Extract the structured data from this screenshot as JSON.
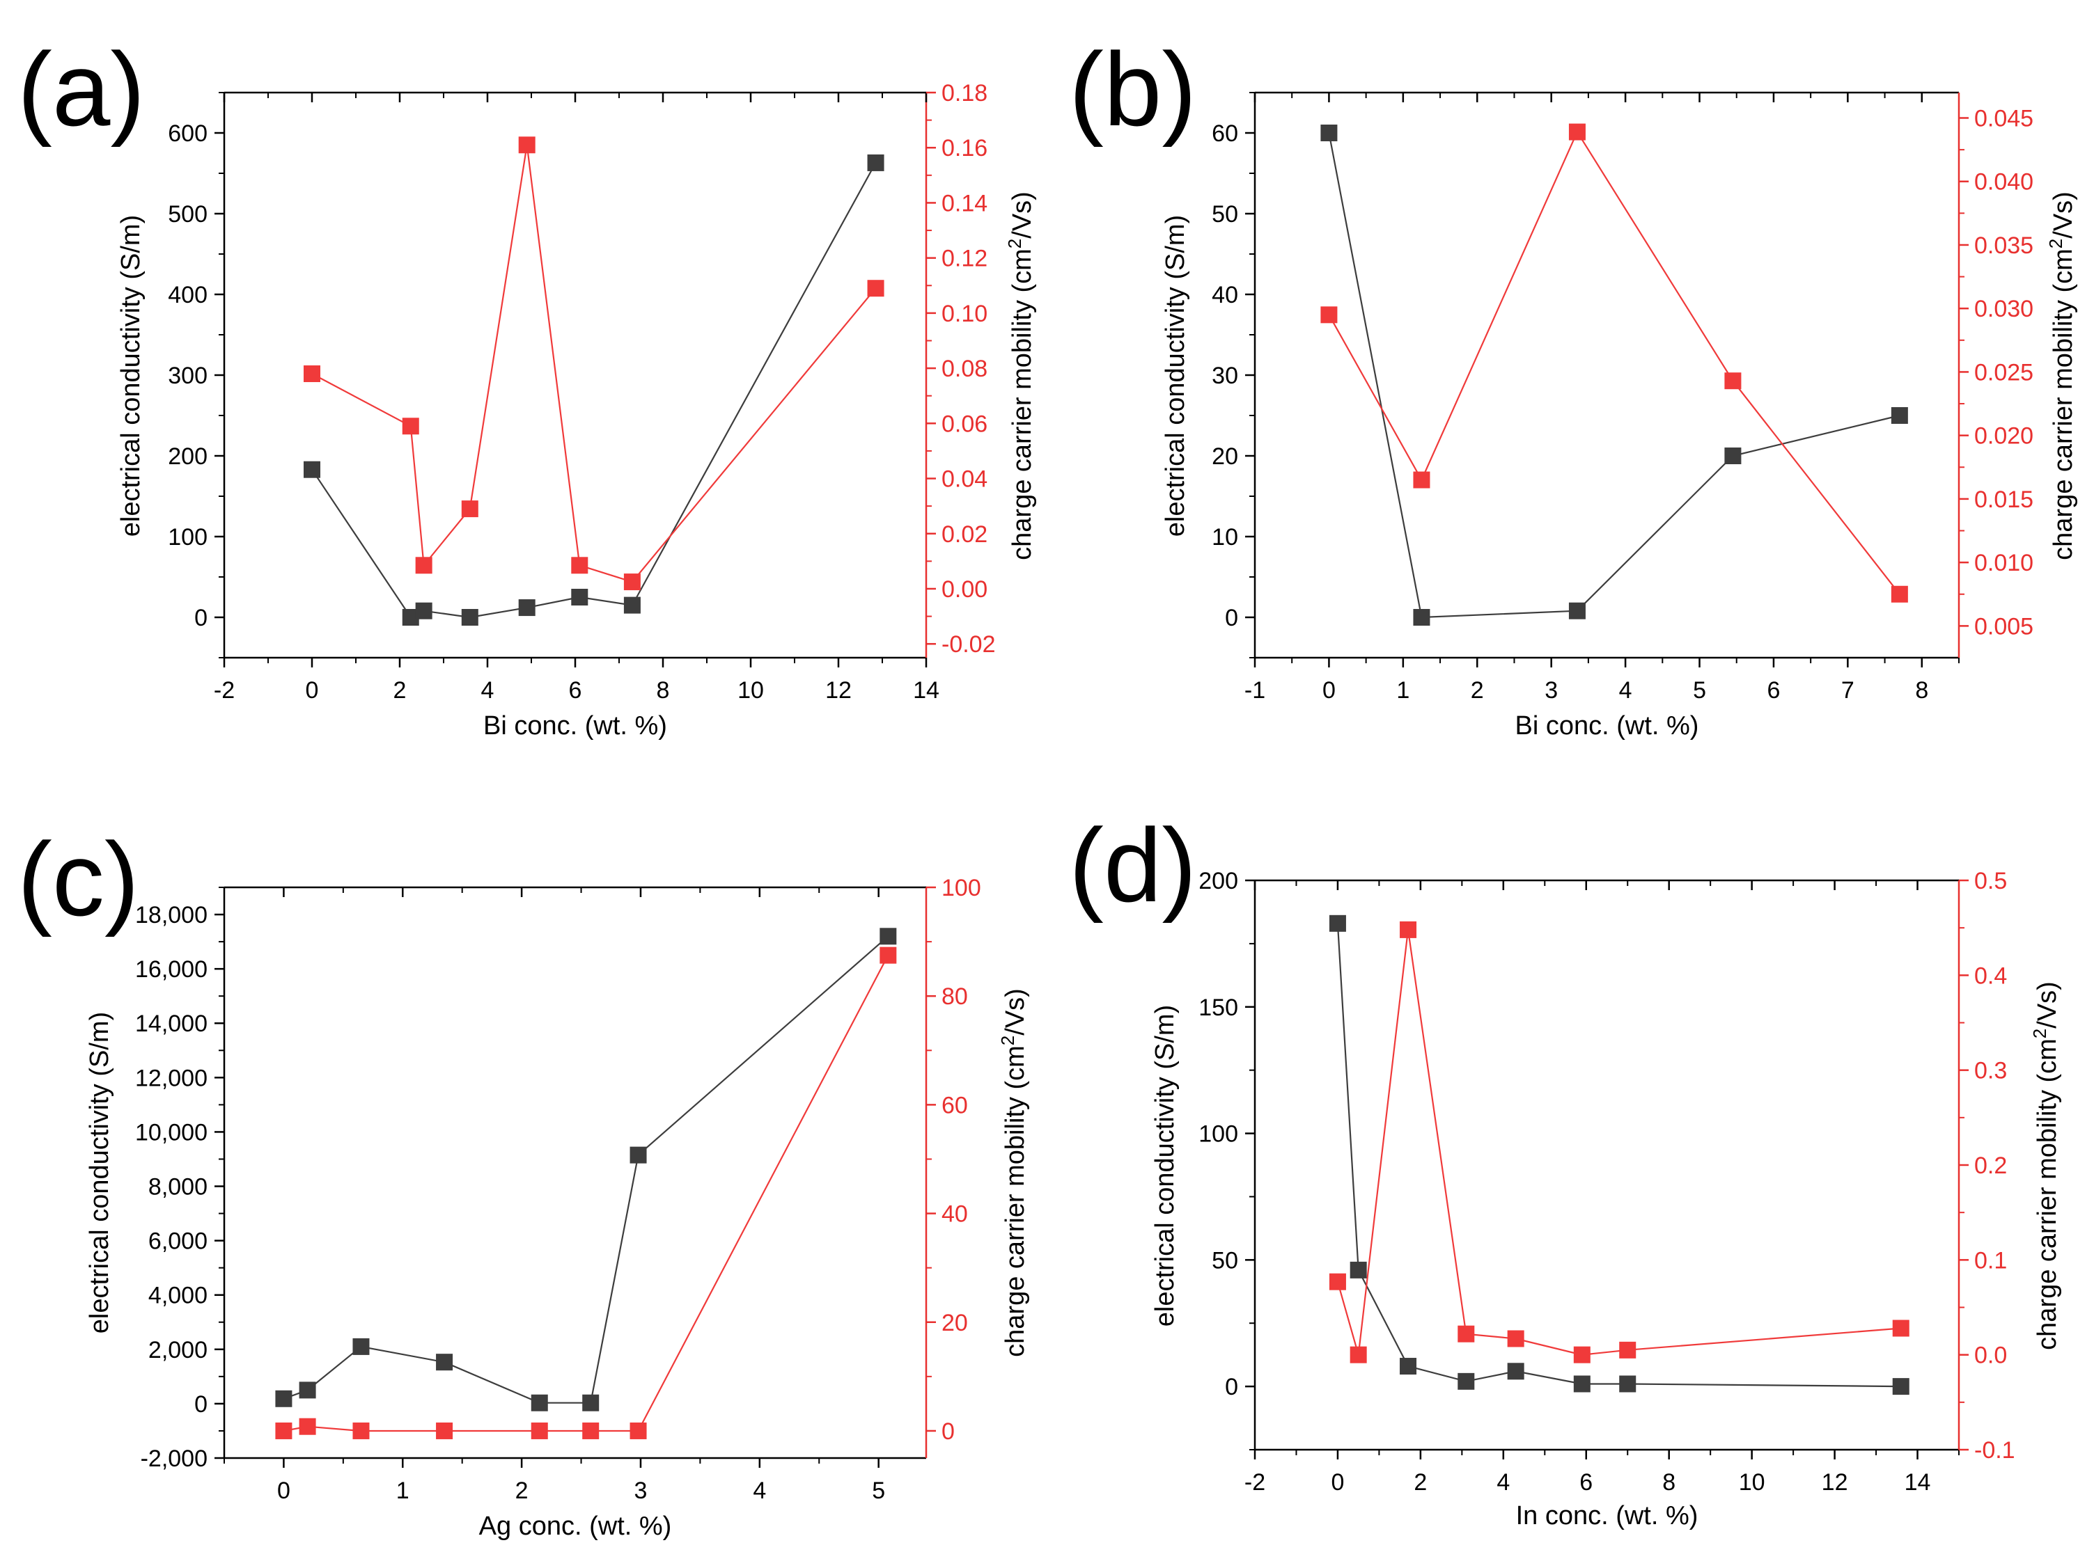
{
  "colors": {
    "black_series": "#3d3d3d",
    "red_series": "#f03a3a",
    "red_axis": "#e8302f",
    "axis": "#000000"
  },
  "chart_data": [
    {
      "panel": "(a)",
      "type": "line",
      "xlabel": "Bi conc. (wt. %)",
      "ylabel_left": "electrical conductivity (S/m)",
      "ylabel_right_prefix": "charge carrier mobility (cm",
      "ylabel_right_sup": "2",
      "ylabel_right_suffix": "/Vs)",
      "xlim": [
        -2,
        14
      ],
      "ylim_left": [
        -50,
        650
      ],
      "ylim_right": [
        -0.025,
        0.18
      ],
      "xticks": [
        -2,
        0,
        2,
        4,
        6,
        8,
        10,
        12,
        14
      ],
      "xtick_labels": [
        "-2",
        "0",
        "2",
        "4",
        "6",
        "8",
        "10",
        "12",
        "14"
      ],
      "yticks_left": [
        0,
        100,
        200,
        300,
        400,
        500,
        600
      ],
      "ytick_labels_left": [
        "0",
        "100",
        "200",
        "300",
        "400",
        "500",
        "600"
      ],
      "yticks_right": [
        -0.02,
        0,
        0.02,
        0.04,
        0.06,
        0.08,
        0.1,
        0.12,
        0.14,
        0.16,
        0.18
      ],
      "ytick_labels_right": [
        "-0.02",
        "0.00",
        "0.02",
        "0.04",
        "0.06",
        "0.08",
        "0.10",
        "0.12",
        "0.14",
        "0.16",
        "0.18"
      ],
      "series": [
        {
          "name": "electrical conductivity",
          "axis": "left",
          "color": "#3d3d3d",
          "x": [
            0,
            2.25,
            2.55,
            3.6,
            4.9,
            6.1,
            7.3,
            12.85
          ],
          "y": [
            183,
            0,
            8,
            0,
            12,
            25,
            15,
            563
          ]
        },
        {
          "name": "charge carrier mobility",
          "axis": "right",
          "color": "#f03a3a",
          "x": [
            0,
            2.25,
            2.55,
            3.6,
            4.9,
            6.1,
            7.3,
            12.85
          ],
          "y": [
            0.078,
            0.059,
            0.0085,
            0.029,
            0.161,
            0.0085,
            0.0025,
            0.109
          ]
        }
      ]
    },
    {
      "panel": "(b)",
      "type": "line",
      "xlabel": "Bi conc. (wt. %)",
      "ylabel_left": "electrical conductivity (S/m)",
      "ylabel_right_prefix": "charge carrier mobility (cm",
      "ylabel_right_sup": "2",
      "ylabel_right_suffix": "/Vs)",
      "xlim": [
        -1,
        8.5
      ],
      "ylim_left": [
        -5,
        65
      ],
      "ylim_right": [
        0.0025,
        0.047
      ],
      "xticks": [
        -1,
        0,
        1,
        2,
        3,
        4,
        5,
        6,
        7,
        8
      ],
      "xtick_labels": [
        "-1",
        "0",
        "1",
        "2",
        "3",
        "4",
        "5",
        "6",
        "7",
        "8"
      ],
      "yticks_left": [
        0,
        10,
        20,
        30,
        40,
        50,
        60
      ],
      "ytick_labels_left": [
        "0",
        "10",
        "20",
        "30",
        "40",
        "50",
        "60"
      ],
      "yticks_right": [
        0.005,
        0.01,
        0.015,
        0.02,
        0.025,
        0.03,
        0.035,
        0.04,
        0.045
      ],
      "ytick_labels_right": [
        "0.005",
        "0.010",
        "0.015",
        "0.020",
        "0.025",
        "0.030",
        "0.035",
        "0.040",
        "0.045"
      ],
      "series": [
        {
          "name": "electrical conductivity",
          "axis": "left",
          "color": "#3d3d3d",
          "x": [
            0,
            1.25,
            3.35,
            5.45,
            7.7
          ],
          "y": [
            60,
            0,
            0.8,
            20,
            25
          ]
        },
        {
          "name": "charge carrier mobility",
          "axis": "right",
          "color": "#f03a3a",
          "x": [
            0,
            1.25,
            3.35,
            5.45,
            7.7
          ],
          "y": [
            0.0295,
            0.0165,
            0.0439,
            0.0243,
            0.0075
          ]
        }
      ]
    },
    {
      "panel": "(c)",
      "type": "line",
      "xlabel": "Ag conc. (wt. %)",
      "ylabel_left": "electrical conductivity (S/m)",
      "ylabel_right_prefix": "charge carrier mobility (cm",
      "ylabel_right_sup": "2",
      "ylabel_right_suffix": "/Vs)",
      "xlim": [
        -0.5,
        5.4
      ],
      "ylim_left": [
        -2000,
        19000
      ],
      "ylim_right": [
        -5,
        100
      ],
      "xticks": [
        0,
        1,
        2,
        3,
        4,
        5
      ],
      "xtick_labels": [
        "0",
        "1",
        "2",
        "3",
        "4",
        "5"
      ],
      "yticks_left": [
        -2000,
        0,
        2000,
        4000,
        6000,
        8000,
        10000,
        12000,
        14000,
        16000,
        18000
      ],
      "ytick_labels_left": [
        "-2,000",
        "0",
        "2,000",
        "4,000",
        "6,000",
        "8,000",
        "10,000",
        "12,000",
        "14,000",
        "16,000",
        "18,000"
      ],
      "yticks_right": [
        0,
        20,
        40,
        60,
        80,
        100
      ],
      "ytick_labels_right": [
        "0",
        "20",
        "40",
        "60",
        "80",
        "100"
      ],
      "series": [
        {
          "name": "electrical conductivity",
          "axis": "left",
          "color": "#3d3d3d",
          "x": [
            0,
            0.2,
            0.65,
            1.35,
            2.15,
            2.58,
            2.98,
            5.08
          ],
          "y": [
            183,
            500,
            2100,
            1530,
            30,
            30,
            9150,
            17200
          ]
        },
        {
          "name": "charge carrier mobility",
          "axis": "right",
          "color": "#f03a3a",
          "x": [
            0,
            0.2,
            0.65,
            1.35,
            2.15,
            2.58,
            2.98,
            5.08
          ],
          "y": [
            0,
            0.8,
            0,
            0,
            0,
            0,
            0,
            87.5
          ]
        }
      ]
    },
    {
      "panel": "(d)",
      "type": "line",
      "xlabel": "In conc. (wt. %)",
      "ylabel_left": "electrical conductivity (S/m)",
      "ylabel_right_prefix": "charge carrier mobility (cm",
      "ylabel_right_sup": "2",
      "ylabel_right_suffix": "/Vs)",
      "xlim": [
        -2,
        15
      ],
      "ylim_left": [
        -25,
        200
      ],
      "ylim_right": [
        -0.1,
        0.5
      ],
      "xticks": [
        -2,
        0,
        2,
        4,
        6,
        8,
        10,
        12,
        14
      ],
      "xtick_labels": [
        "-2",
        "0",
        "2",
        "4",
        "6",
        "8",
        "10",
        "12",
        "14"
      ],
      "yticks_left": [
        0,
        50,
        100,
        150,
        200
      ],
      "ytick_labels_left": [
        "0",
        "50",
        "100",
        "150",
        "200"
      ],
      "yticks_right": [
        -0.1,
        0,
        0.1,
        0.2,
        0.3,
        0.4,
        0.5
      ],
      "ytick_labels_right": [
        "-0.1",
        "0.0",
        "0.1",
        "0.2",
        "0.3",
        "0.4",
        "0.5"
      ],
      "series": [
        {
          "name": "electrical conductivity",
          "axis": "left",
          "color": "#3d3d3d",
          "x": [
            0,
            0.5,
            1.7,
            3.1,
            4.3,
            5.9,
            7.0,
            13.6
          ],
          "y": [
            183,
            46,
            8,
            2,
            6,
            1,
            1,
            0
          ]
        },
        {
          "name": "charge carrier mobility",
          "axis": "right",
          "color": "#f03a3a",
          "x": [
            0,
            0.5,
            1.7,
            3.1,
            4.3,
            5.9,
            7.0,
            13.6
          ],
          "y": [
            0.077,
            0,
            0.448,
            0.022,
            0.017,
            0,
            0.005,
            0.028
          ]
        }
      ]
    }
  ]
}
